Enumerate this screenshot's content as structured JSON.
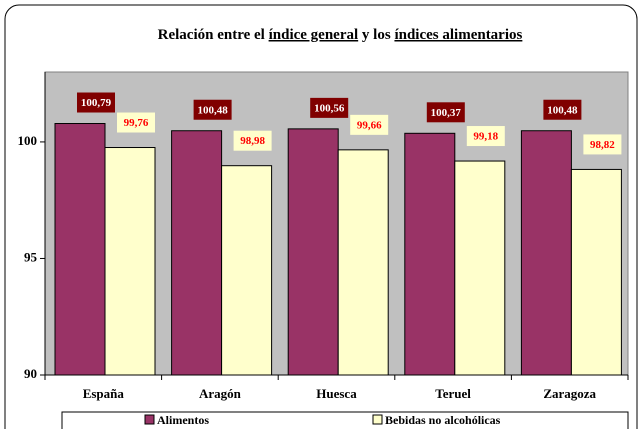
{
  "chart_data": {
    "type": "bar",
    "title": [
      {
        "text": "Relación entre el "
      },
      {
        "text": "índice general",
        "underline": true
      },
      {
        "text": " y los "
      },
      {
        "text": "índices alimentarios",
        "underline": true
      }
    ],
    "categories": [
      "España",
      "Aragón",
      "Huesca",
      "Teruel",
      "Zaragoza"
    ],
    "series": [
      {
        "name": "Alimentos",
        "color": "#993366",
        "values": [
          100.79,
          100.48,
          100.56,
          100.37,
          100.48
        ],
        "value_labels": [
          "100,79",
          "100,48",
          "100,56",
          "100,37",
          "100,48"
        ]
      },
      {
        "name": "Bebidas no alcohólicas",
        "color": "#ffffcc",
        "values": [
          99.76,
          98.98,
          99.66,
          99.18,
          98.82
        ],
        "value_labels": [
          "99,76",
          "98,98",
          "99,66",
          "99,18",
          "98,82"
        ]
      }
    ],
    "ylim": [
      90,
      103
    ],
    "yticks": [
      90,
      95,
      100
    ],
    "grid": false,
    "legend": "bottom"
  }
}
